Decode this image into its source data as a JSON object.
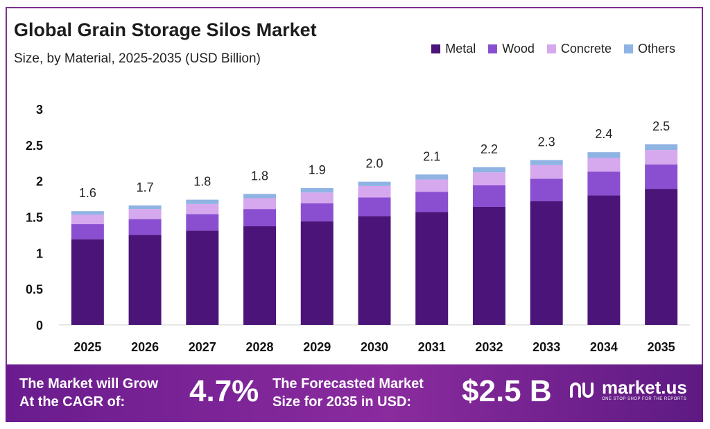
{
  "header": {
    "title": "Global Grain Storage Silos Market",
    "subtitle": "Size, by Material, 2025-2035 (USD Billion)"
  },
  "chart_data": {
    "type": "bar",
    "stacked": true,
    "categories": [
      "2025",
      "2026",
      "2027",
      "2028",
      "2029",
      "2030",
      "2031",
      "2032",
      "2033",
      "2034",
      "2035"
    ],
    "series": [
      {
        "name": "Metal",
        "color": "#4a1479",
        "values": [
          1.19,
          1.25,
          1.31,
          1.37,
          1.44,
          1.51,
          1.57,
          1.64,
          1.72,
          1.8,
          1.89
        ]
      },
      {
        "name": "Wood",
        "color": "#8a4fd0",
        "values": [
          0.21,
          0.22,
          0.23,
          0.24,
          0.25,
          0.26,
          0.28,
          0.3,
          0.31,
          0.33,
          0.34
        ]
      },
      {
        "name": "Concrete",
        "color": "#d6a8ee",
        "values": [
          0.13,
          0.14,
          0.14,
          0.15,
          0.15,
          0.16,
          0.17,
          0.18,
          0.19,
          0.19,
          0.2
        ]
      },
      {
        "name": "Others",
        "color": "#8fb4e3",
        "values": [
          0.05,
          0.05,
          0.06,
          0.06,
          0.06,
          0.06,
          0.07,
          0.07,
          0.07,
          0.08,
          0.08
        ]
      }
    ],
    "totals": [
      "1.6",
      "1.7",
      "1.8",
      "1.8",
      "1.9",
      "2.0",
      "2.1",
      "2.2",
      "2.3",
      "2.4",
      "2.5"
    ],
    "yticks": [
      "0",
      "0.5",
      "1",
      "1.5",
      "2",
      "2.5",
      "3"
    ],
    "ylim": [
      0,
      3
    ],
    "grid": false,
    "legend_position": "top-right"
  },
  "footer": {
    "cagr_label": "The Market will Grow\nAt the CAGR of:",
    "cagr_value": "4.7%",
    "forecast_label": "The Forecasted Market\nSize for 2035 in USD:",
    "forecast_value": "$2.5 B",
    "brand_name": "market.us",
    "brand_tagline": "ONE STOP SHOP FOR THE REPORTS"
  }
}
